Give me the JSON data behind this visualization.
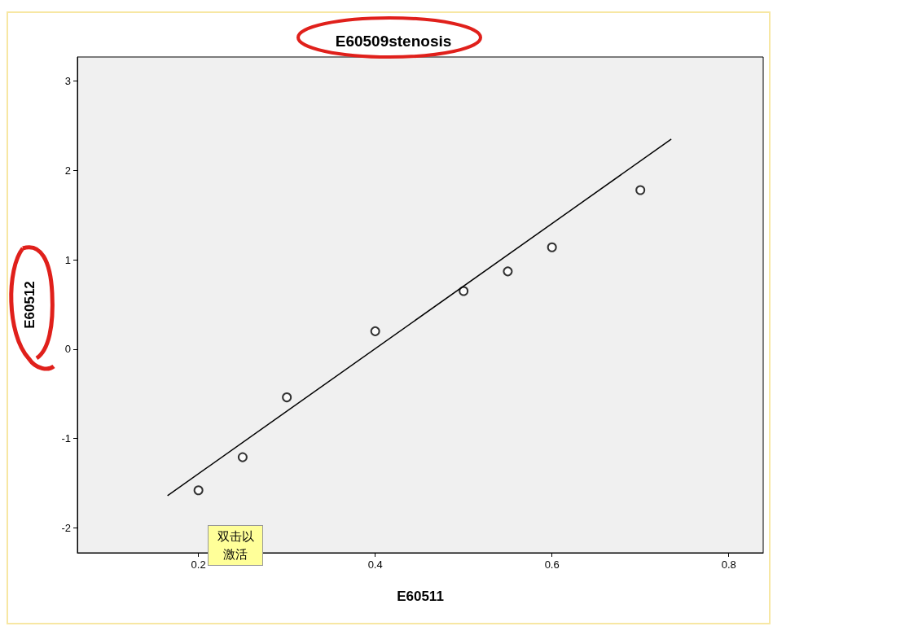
{
  "chart_data": {
    "type": "scatter",
    "title": "E60509stenosis",
    "xlabel": "E60511",
    "ylabel": "E60512",
    "xlim": [
      0.063,
      0.839
    ],
    "xticks": [
      0.2,
      0.4,
      0.6,
      0.8
    ],
    "ylim": [
      -2.28,
      3.27
    ],
    "yticks": [
      -2,
      -1,
      0,
      1,
      2,
      3
    ],
    "grid": false,
    "marker": "circle",
    "annotations": [
      "双击以激活"
    ],
    "series": [
      {
        "color": "#000000",
        "x": [
          0.2,
          0.25,
          0.3,
          0.4,
          0.5,
          0.55,
          0.6,
          0.7
        ],
        "values": [
          -1.58,
          -1.21,
          -0.54,
          0.2,
          0.65,
          0.87,
          1.14,
          1.78
        ]
      },
      {
        "type": "line",
        "marker": "none",
        "color": "#000000",
        "x": [
          0.165,
          0.735
        ],
        "values": [
          -1.64,
          2.35
        ]
      }
    ]
  }
}
